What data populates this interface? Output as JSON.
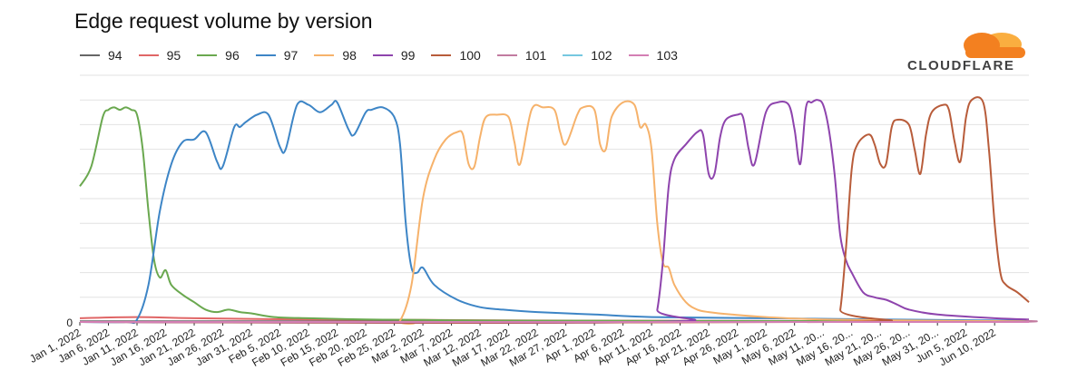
{
  "chart_data": {
    "type": "line",
    "title": "Edge request volume by version",
    "xlabel": "",
    "ylabel": "",
    "y_tick_labels": [
      "0"
    ],
    "ylim": [
      0,
      100
    ],
    "grid": true,
    "legend_position": "top",
    "x_tick_labels": [
      "Jan 1, 2022",
      "Jan 6, 2022",
      "Jan 11, 2022",
      "Jan 16, 2022",
      "Jan 21, 2022",
      "Jan 26, 2022",
      "Jan 31, 2022",
      "Feb 5, 2022",
      "Feb 10, 2022",
      "Feb 15, 2022",
      "Feb 20, 2022",
      "Feb 25, 2022",
      "Mar 2, 2022",
      "Mar 7, 2022",
      "Mar 12, 2022",
      "Mar 17, 2022",
      "Mar 22, 2022",
      "Mar 27, 2022",
      "Apr 1, 2022",
      "Apr 6, 2022",
      "Apr 11, 2022",
      "Apr 16, 2022",
      "Apr 21, 2022",
      "Apr 26, 2022",
      "May 1, 2022",
      "May 6, 2022",
      "May 11, 20...",
      "May 16, 20...",
      "May 21, 20...",
      "May 26, 20...",
      "May 31, 20...",
      "Jun 5, 2022",
      "Jun 10, 2022"
    ],
    "x_day_range": [
      0,
      166
    ],
    "series": [
      {
        "name": "94",
        "color": "#666666",
        "points": [
          [
            0,
            0.3
          ],
          [
            166,
            0.3
          ]
        ]
      },
      {
        "name": "95",
        "color": "#e06666",
        "points": [
          [
            0,
            1.5
          ],
          [
            10,
            2.0
          ],
          [
            20,
            1.5
          ],
          [
            40,
            1.0
          ],
          [
            60,
            0.8
          ],
          [
            80,
            0.6
          ],
          [
            100,
            0.5
          ],
          [
            120,
            0.4
          ],
          [
            140,
            0.3
          ],
          [
            166,
            0.3
          ]
        ]
      },
      {
        "name": "96",
        "color": "#6aa84f",
        "points": [
          [
            0,
            55
          ],
          [
            2,
            63
          ],
          [
            4,
            83
          ],
          [
            5,
            86
          ],
          [
            6,
            87
          ],
          [
            7,
            86
          ],
          [
            8,
            87
          ],
          [
            9,
            86
          ],
          [
            10,
            84
          ],
          [
            11,
            70
          ],
          [
            12,
            45
          ],
          [
            13,
            25
          ],
          [
            14,
            18
          ],
          [
            15,
            21
          ],
          [
            16,
            15
          ],
          [
            18,
            11
          ],
          [
            20,
            8
          ],
          [
            22,
            5
          ],
          [
            24,
            4
          ],
          [
            26,
            5
          ],
          [
            28,
            4
          ],
          [
            30,
            3.5
          ],
          [
            34,
            2
          ],
          [
            40,
            1.5
          ],
          [
            50,
            1
          ],
          [
            60,
            0.8
          ],
          [
            80,
            0.5
          ],
          [
            166,
            0.3
          ]
        ]
      },
      {
        "name": "97",
        "color": "#3d85c6",
        "points": [
          [
            0,
            0
          ],
          [
            8,
            0
          ],
          [
            10,
            1
          ],
          [
            12,
            15
          ],
          [
            14,
            45
          ],
          [
            16,
            64
          ],
          [
            18,
            73
          ],
          [
            20,
            74
          ],
          [
            22,
            77
          ],
          [
            24,
            65
          ],
          [
            25,
            63
          ],
          [
            27,
            79
          ],
          [
            28,
            79
          ],
          [
            29,
            81
          ],
          [
            31,
            84
          ],
          [
            33,
            84
          ],
          [
            35,
            71
          ],
          [
            36,
            70
          ],
          [
            38,
            88
          ],
          [
            40,
            88
          ],
          [
            42,
            85
          ],
          [
            44,
            88
          ],
          [
            45,
            89
          ],
          [
            47,
            78
          ],
          [
            48,
            76
          ],
          [
            50,
            85
          ],
          [
            51,
            86
          ],
          [
            53,
            87
          ],
          [
            55,
            83
          ],
          [
            56,
            72
          ],
          [
            57,
            40
          ],
          [
            58,
            22
          ],
          [
            59,
            20
          ],
          [
            60,
            22
          ],
          [
            62,
            15
          ],
          [
            66,
            9
          ],
          [
            70,
            6
          ],
          [
            74,
            5
          ],
          [
            80,
            4
          ],
          [
            90,
            3
          ],
          [
            100,
            2
          ],
          [
            120,
            1.5
          ],
          [
            140,
            1
          ],
          [
            166,
            0.5
          ]
        ]
      },
      {
        "name": "98",
        "color": "#f6b26b",
        "points": [
          [
            0,
            0
          ],
          [
            54,
            0
          ],
          [
            56,
            0.5
          ],
          [
            58,
            15
          ],
          [
            60,
            50
          ],
          [
            62,
            66
          ],
          [
            64,
            74
          ],
          [
            66,
            77
          ],
          [
            67,
            76
          ],
          [
            68,
            64
          ],
          [
            69,
            63
          ],
          [
            70,
            75
          ],
          [
            71,
            83
          ],
          [
            73,
            84
          ],
          [
            75,
            83
          ],
          [
            76,
            73
          ],
          [
            77,
            64
          ],
          [
            79,
            86
          ],
          [
            81,
            87
          ],
          [
            83,
            86
          ],
          [
            84,
            77
          ],
          [
            85,
            72
          ],
          [
            87,
            84
          ],
          [
            88,
            87
          ],
          [
            90,
            86
          ],
          [
            91,
            72
          ],
          [
            92,
            70
          ],
          [
            93,
            83
          ],
          [
            95,
            89
          ],
          [
            97,
            88
          ],
          [
            98,
            79
          ],
          [
            99,
            80
          ],
          [
            100,
            70
          ],
          [
            101,
            40
          ],
          [
            102,
            24
          ],
          [
            103,
            22
          ],
          [
            104,
            15
          ],
          [
            106,
            8
          ],
          [
            108,
            5
          ],
          [
            110,
            4
          ],
          [
            114,
            3
          ],
          [
            120,
            2
          ],
          [
            130,
            1
          ],
          [
            150,
            0.5
          ],
          [
            166,
            0.3
          ]
        ]
      },
      {
        "name": "99",
        "color": "#8e44ad",
        "points": [
          [
            0,
            0
          ],
          [
            100,
            0
          ],
          [
            101,
            5
          ],
          [
            102,
            25
          ],
          [
            103,
            55
          ],
          [
            104,
            66
          ],
          [
            106,
            72
          ],
          [
            108,
            77
          ],
          [
            109,
            76
          ],
          [
            110,
            60
          ],
          [
            111,
            60
          ],
          [
            112,
            75
          ],
          [
            113,
            82
          ],
          [
            115,
            84
          ],
          [
            116,
            83
          ],
          [
            117,
            70
          ],
          [
            118,
            64
          ],
          [
            120,
            85
          ],
          [
            122,
            89
          ],
          [
            124,
            88
          ],
          [
            125,
            78
          ],
          [
            126,
            64
          ],
          [
            127,
            87
          ],
          [
            128,
            89
          ],
          [
            129,
            90
          ],
          [
            130,
            88
          ],
          [
            131,
            78
          ],
          [
            132,
            60
          ],
          [
            133,
            35
          ],
          [
            134,
            25
          ],
          [
            135,
            20
          ],
          [
            137,
            12
          ],
          [
            139,
            10
          ],
          [
            141,
            9
          ],
          [
            143,
            7
          ],
          [
            145,
            5
          ],
          [
            150,
            3
          ],
          [
            160,
            1.5
          ],
          [
            166,
            1
          ]
        ]
      },
      {
        "name": "100",
        "color": "#b85c3a",
        "points": [
          [
            0,
            0
          ],
          [
            132,
            0
          ],
          [
            133,
            5
          ],
          [
            134,
            30
          ],
          [
            135,
            62
          ],
          [
            136,
            72
          ],
          [
            138,
            76
          ],
          [
            139,
            72
          ],
          [
            140,
            64
          ],
          [
            141,
            64
          ],
          [
            142,
            79
          ],
          [
            143,
            82
          ],
          [
            145,
            80
          ],
          [
            146,
            70
          ],
          [
            147,
            60
          ],
          [
            148,
            76
          ],
          [
            149,
            85
          ],
          [
            151,
            88
          ],
          [
            152,
            86
          ],
          [
            153,
            73
          ],
          [
            154,
            65
          ],
          [
            155,
            83
          ],
          [
            156,
            90
          ],
          [
            158,
            89
          ],
          [
            159,
            70
          ],
          [
            160,
            40
          ],
          [
            161,
            20
          ],
          [
            162,
            15
          ],
          [
            164,
            12
          ],
          [
            166,
            8
          ]
        ]
      },
      {
        "name": "101",
        "color": "#c27ba0",
        "points": [
          [
            0,
            0
          ],
          [
            150,
            0
          ],
          [
            166,
            0.5
          ]
        ]
      },
      {
        "name": "102",
        "color": "#76c8e0",
        "points": [
          [
            0,
            0
          ],
          [
            166,
            0
          ]
        ]
      },
      {
        "name": "103",
        "color": "#d47fb4",
        "points": [
          [
            0,
            0
          ],
          [
            166,
            0
          ]
        ]
      }
    ]
  },
  "brand": {
    "logo_text": "CLOUDFLARE",
    "cloud_color": "#f38020",
    "cloud_light": "#faae40"
  }
}
